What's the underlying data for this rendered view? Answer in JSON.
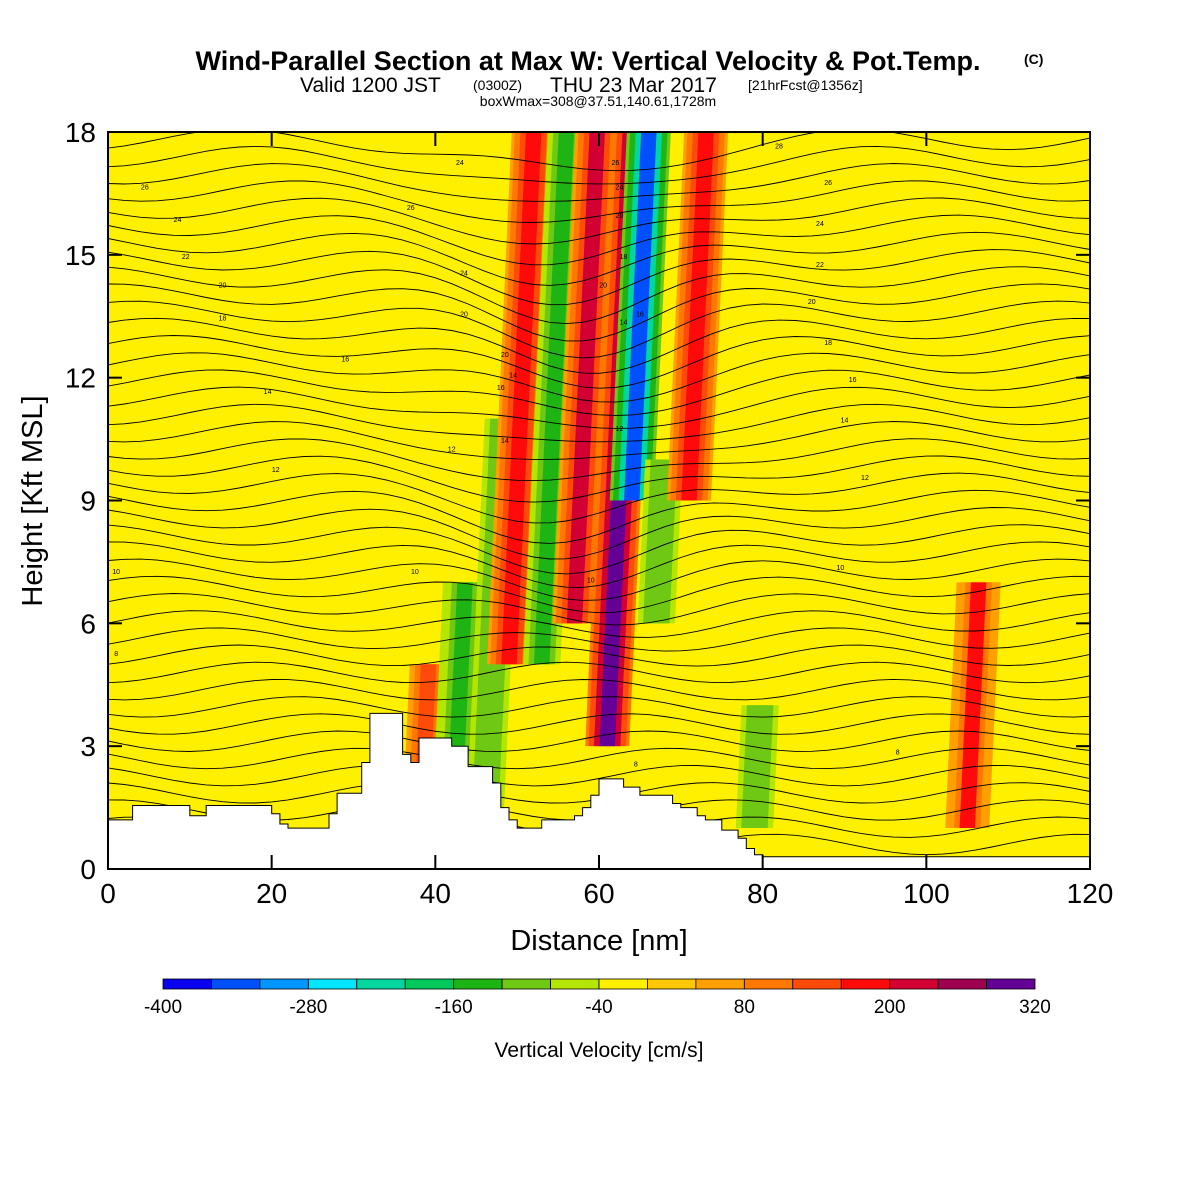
{
  "title": "Wind-Parallel Section at Max W: Vertical Velocity & Pot.Temp.",
  "title_mark": "(C)",
  "subtitle": {
    "valid": "Valid 1200 JST",
    "utc": "(0300Z)",
    "date": "THU 23 Mar 2017",
    "fcst": "[21hrFcst@1356z]"
  },
  "box_info": "boxWmax=308@37.51,140.61,1728m",
  "chart_data": {
    "type": "heatmap",
    "xlabel": "Distance [nm]",
    "ylabel": "Height [Kft MSL]",
    "xlim": [
      0,
      120
    ],
    "ylim": [
      0,
      18
    ],
    "x_ticks": [
      0,
      20,
      40,
      60,
      80,
      100,
      120
    ],
    "y_ticks": [
      0,
      3,
      6,
      9,
      12,
      15,
      18
    ],
    "colorbar": {
      "label": "Vertical Velocity [cm/s]",
      "tick_labels": [
        "-400",
        "-280",
        "-160",
        "-40",
        "80",
        "200",
        "320"
      ],
      "levels": [
        -400,
        -360,
        -320,
        -280,
        -240,
        -200,
        -160,
        -120,
        -80,
        -40,
        0,
        40,
        80,
        120,
        160,
        200,
        240,
        280,
        320
      ],
      "colors": [
        "#0a00f0",
        "#0050ff",
        "#0096ff",
        "#00e6ff",
        "#00d7a0",
        "#00c85a",
        "#1eb414",
        "#6ec814",
        "#b4e600",
        "#fff000",
        "#ffc800",
        "#ffa000",
        "#ff7800",
        "#ff4b0a",
        "#ff0a0a",
        "#d20032",
        "#a00050",
        "#640096"
      ]
    },
    "w_features": [
      {
        "x": 38,
        "value": 140,
        "z_bottom": 0,
        "z_top": 5
      },
      {
        "x": 42,
        "value": -150,
        "z_bottom": 0,
        "z_top": 7
      },
      {
        "x": 46,
        "value": -120,
        "z_bottom": 1,
        "z_top": 11
      },
      {
        "x": 49,
        "value": 190,
        "z_bottom": 5,
        "z_top": 18
      },
      {
        "x": 53,
        "value": -130,
        "z_bottom": 5,
        "z_top": 18
      },
      {
        "x": 57,
        "value": 200,
        "z_bottom": 6,
        "z_top": 18
      },
      {
        "x": 61,
        "value": 300,
        "z_bottom": 3,
        "z_top": 18
      },
      {
        "x": 64,
        "value": -330,
        "z_bottom": 9,
        "z_top": 18
      },
      {
        "x": 67,
        "value": -120,
        "z_bottom": 6,
        "z_top": 10
      },
      {
        "x": 71,
        "value": 190,
        "z_bottom": 9,
        "z_top": 18
      },
      {
        "x": 79,
        "value": -120,
        "z_bottom": 1,
        "z_top": 4
      },
      {
        "x": 105,
        "value": 160,
        "z_bottom": 1,
        "z_top": 7
      }
    ],
    "theta_contour_labels": [
      {
        "text": "26",
        "x": 4.5,
        "z": 16.6
      },
      {
        "text": "24",
        "x": 8.5,
        "z": 15.8
      },
      {
        "text": "22",
        "x": 9.5,
        "z": 14.9
      },
      {
        "text": "20",
        "x": 14,
        "z": 14.2
      },
      {
        "text": "18",
        "x": 14,
        "z": 13.4
      },
      {
        "text": "16",
        "x": 29,
        "z": 12.4
      },
      {
        "text": "14",
        "x": 19.5,
        "z": 11.6
      },
      {
        "text": "12",
        "x": 20.5,
        "z": 9.7
      },
      {
        "text": "10",
        "x": 1,
        "z": 7.2
      },
      {
        "text": "8",
        "x": 1,
        "z": 5.2
      },
      {
        "text": "10",
        "x": 37.5,
        "z": 7.2
      },
      {
        "text": "12",
        "x": 42,
        "z": 10.2
      },
      {
        "text": "24",
        "x": 43,
        "z": 17.2
      },
      {
        "text": "26",
        "x": 37,
        "z": 16.1
      },
      {
        "text": "24",
        "x": 43.5,
        "z": 14.5
      },
      {
        "text": "20",
        "x": 43.5,
        "z": 13.5
      },
      {
        "text": "20",
        "x": 48.5,
        "z": 12.5
      },
      {
        "text": "16",
        "x": 48,
        "z": 11.7
      },
      {
        "text": "14",
        "x": 49.5,
        "z": 12
      },
      {
        "text": "14",
        "x": 48.5,
        "z": 10.4
      },
      {
        "text": "10",
        "x": 59,
        "z": 7
      },
      {
        "text": "26",
        "x": 62,
        "z": 17.2
      },
      {
        "text": "24",
        "x": 62.5,
        "z": 16.6
      },
      {
        "text": "20",
        "x": 62.5,
        "z": 15.9
      },
      {
        "text": "18",
        "x": 63,
        "z": 14.9
      },
      {
        "text": "20",
        "x": 60.5,
        "z": 14.2
      },
      {
        "text": "14",
        "x": 63,
        "z": 13.3
      },
      {
        "text": "16",
        "x": 65,
        "z": 13.5
      },
      {
        "text": "12",
        "x": 62.5,
        "z": 10.7
      },
      {
        "text": "8",
        "x": 64.5,
        "z": 2.5
      },
      {
        "text": "28",
        "x": 82,
        "z": 17.6
      },
      {
        "text": "26",
        "x": 88,
        "z": 16.7
      },
      {
        "text": "24",
        "x": 87,
        "z": 15.7
      },
      {
        "text": "22",
        "x": 87,
        "z": 14.7
      },
      {
        "text": "20",
        "x": 86,
        "z": 13.8
      },
      {
        "text": "18",
        "x": 88,
        "z": 12.8
      },
      {
        "text": "16",
        "x": 91,
        "z": 11.9
      },
      {
        "text": "14",
        "x": 90,
        "z": 10.9
      },
      {
        "text": "12",
        "x": 92.5,
        "z": 9.5
      },
      {
        "text": "10",
        "x": 89.5,
        "z": 7.3
      },
      {
        "text": "8",
        "x": 96.5,
        "z": 2.8
      }
    ],
    "terrain": {
      "x": [
        0,
        3,
        3,
        10,
        10,
        12,
        12,
        20,
        20,
        21,
        21,
        22,
        22,
        27,
        27,
        28,
        28,
        31,
        31,
        32,
        32,
        36,
        36,
        37,
        37,
        38,
        38,
        42,
        42,
        44,
        44,
        47,
        47,
        48,
        48,
        49,
        49,
        50,
        50,
        53,
        53,
        57,
        57,
        58,
        58,
        59,
        59,
        60,
        60,
        63,
        63,
        65,
        65,
        69,
        69,
        70,
        70,
        72,
        72,
        73,
        73,
        75,
        75,
        77,
        77,
        78,
        78,
        79,
        79,
        80,
        80,
        120
      ],
      "z": [
        1.2,
        1.2,
        1.55,
        1.55,
        1.3,
        1.3,
        1.55,
        1.55,
        1.35,
        1.35,
        1.1,
        1.1,
        1.0,
        1.0,
        1.35,
        1.35,
        1.85,
        1.85,
        2.6,
        2.6,
        3.8,
        3.8,
        2.8,
        2.8,
        2.6,
        2.6,
        3.2,
        3.2,
        3.0,
        3.0,
        2.5,
        2.5,
        2.1,
        2.1,
        1.5,
        1.5,
        1.2,
        1.2,
        1.0,
        1.0,
        1.2,
        1.2,
        1.3,
        1.3,
        1.5,
        1.5,
        1.8,
        1.8,
        2.2,
        2.2,
        2.0,
        2.0,
        1.8,
        1.8,
        1.6,
        1.6,
        1.5,
        1.5,
        1.3,
        1.3,
        1.2,
        1.2,
        0.95,
        0.95,
        0.75,
        0.75,
        0.5,
        0.5,
        0.35,
        0.35,
        0.3,
        0.3
      ]
    }
  }
}
